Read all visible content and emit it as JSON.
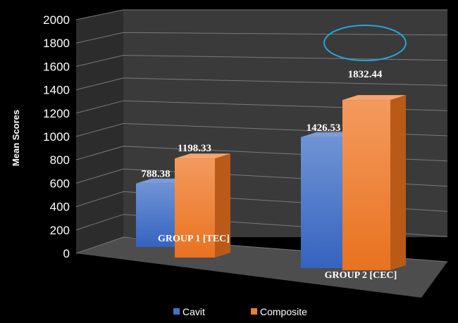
{
  "chart_data": {
    "type": "bar",
    "style": "3d-clustered-column",
    "title": "",
    "xlabel": "",
    "ylabel": "Mean Scores",
    "ylim": [
      0,
      2000
    ],
    "yticks": [
      "0",
      "200",
      "400",
      "600",
      "800",
      "1000",
      "1200",
      "1400",
      "1600",
      "1800",
      "2000"
    ],
    "grid": true,
    "legend_position": "bottom",
    "categories": [
      "GROUP 1 [TEC]",
      "GROUP 2 [CEC]"
    ],
    "series": [
      {
        "name": "Cavit",
        "color": "#4472c4",
        "values": [
          788.38,
          1426.53
        ],
        "labels": [
          "788.38",
          "1426.53"
        ]
      },
      {
        "name": "Composite",
        "color": "#ed7d31",
        "values": [
          1198.33,
          1832.44
        ],
        "labels": [
          "1198.33",
          "1832.44"
        ]
      }
    ],
    "highlight": {
      "series": 1,
      "category": 1,
      "shape": "ellipse",
      "color": "#29a3d6"
    }
  }
}
